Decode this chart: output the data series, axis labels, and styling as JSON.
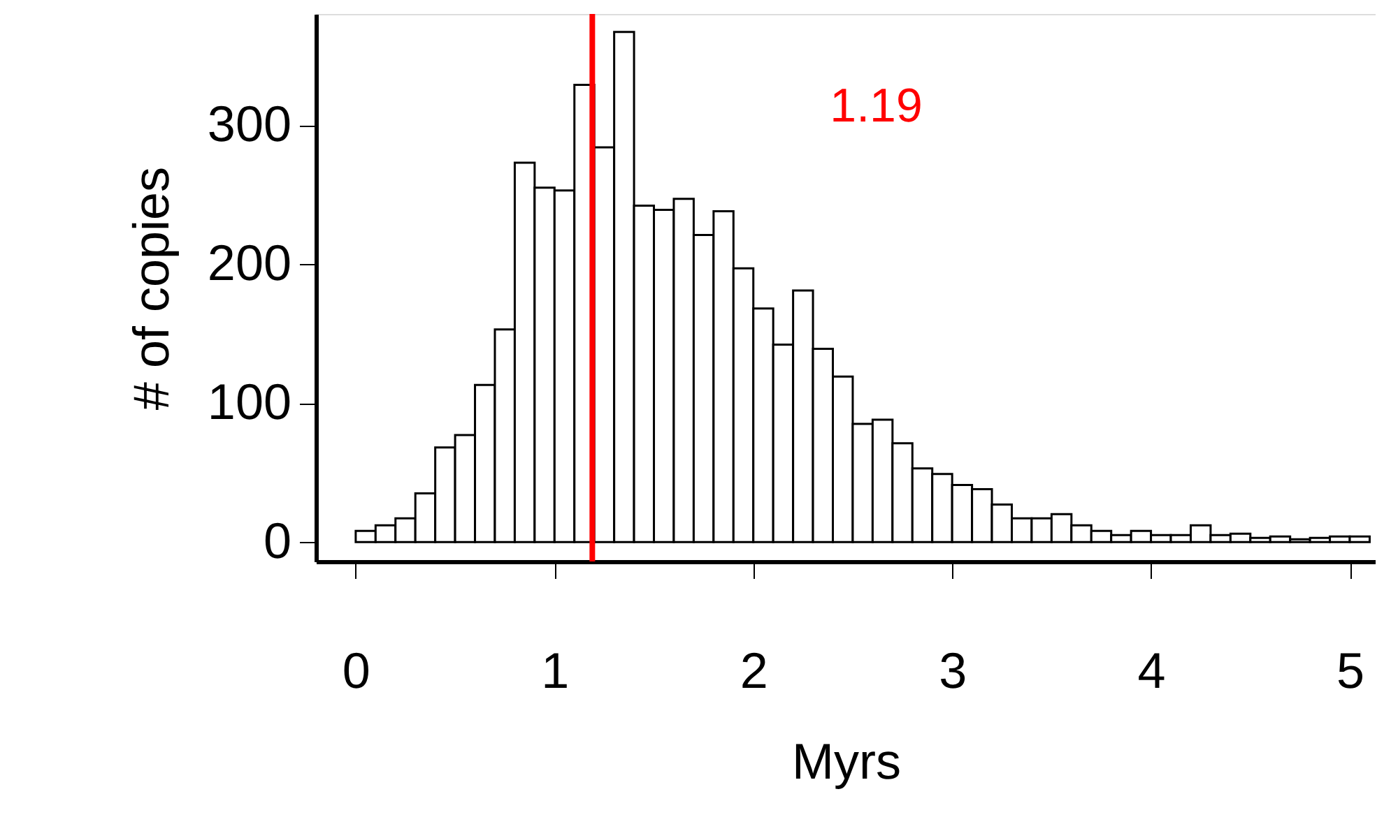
{
  "chart_data": {
    "type": "histogram",
    "xlabel": "Myrs",
    "ylabel": "# of copies",
    "bins": [
      0,
      0.1,
      0.2,
      0.3,
      0.4,
      0.5,
      0.6,
      0.7,
      0.8,
      0.9,
      1.0,
      1.1,
      1.2,
      1.3,
      1.4,
      1.5,
      1.6,
      1.7,
      1.8,
      1.9,
      2.0,
      2.1,
      2.2,
      2.3,
      2.4,
      2.5,
      2.6,
      2.7,
      2.8,
      2.9,
      3.0,
      3.1,
      3.2,
      3.3,
      3.4,
      3.5,
      3.6,
      3.7,
      3.8,
      3.9,
      4.0,
      4.1,
      4.2,
      4.3,
      4.4,
      4.5,
      4.6,
      4.7,
      4.8,
      4.9,
      5.0,
      5.1
    ],
    "values": [
      8,
      12,
      17,
      35,
      68,
      77,
      113,
      153,
      273,
      255,
      253,
      329,
      284,
      367,
      242,
      239,
      247,
      221,
      238,
      197,
      168,
      142,
      181,
      139,
      119,
      85,
      88,
      71,
      53,
      49,
      41,
      38,
      27,
      17,
      17,
      20,
      12,
      8,
      5,
      8,
      5,
      5,
      12,
      5,
      6,
      3,
      4,
      2,
      3,
      4,
      4
    ],
    "color": "#ffffff",
    "xlim": [
      -0.2,
      5.13
    ],
    "ylim": [
      -14,
      380
    ],
    "xticks": [
      0,
      1,
      2,
      3,
      4,
      5
    ],
    "yticks": [
      0,
      100,
      200,
      300
    ],
    "ref_lines": [
      {
        "axis": "x",
        "value": 1.19,
        "label": "1.19",
        "color": "#ff0000"
      }
    ],
    "grid": false
  }
}
